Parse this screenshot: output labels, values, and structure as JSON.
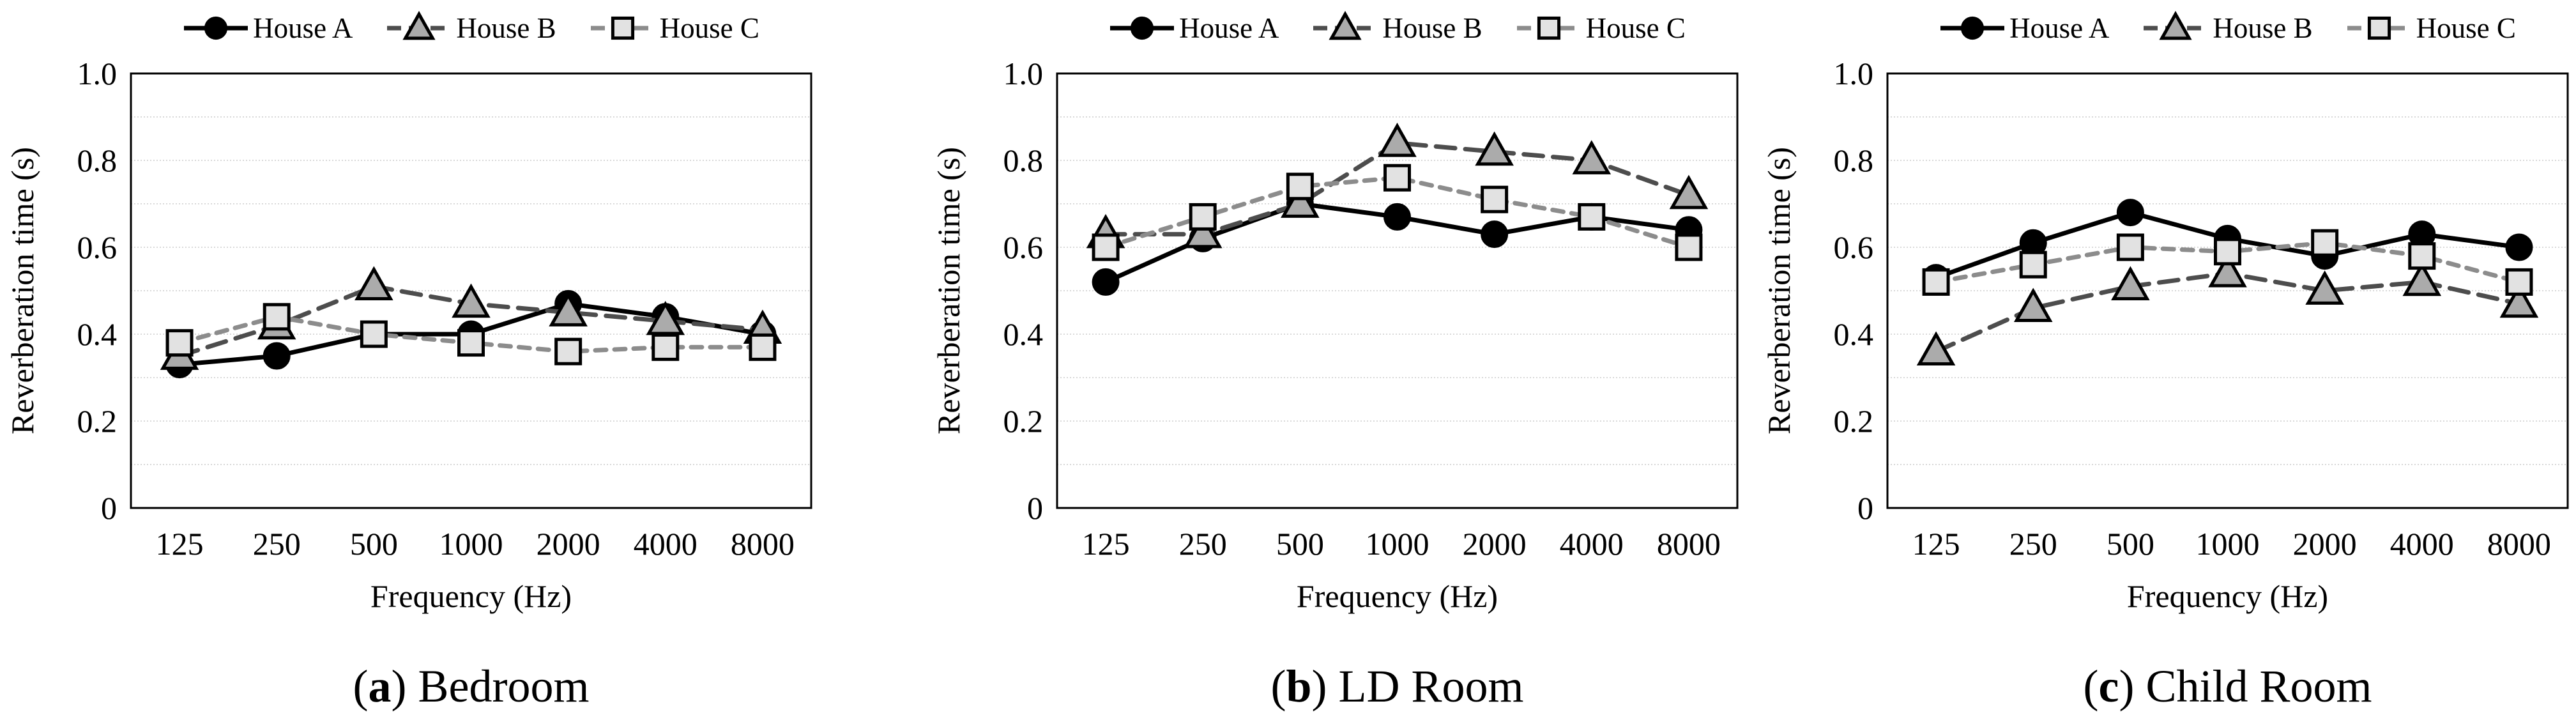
{
  "ui": {
    "legend": {
      "items": [
        {
          "label": "House A"
        },
        {
          "label": "House B"
        },
        {
          "label": "House C"
        }
      ]
    },
    "y_axis_label": "Reverberation time  (s)",
    "x_axis_label": "Frequency  (Hz)",
    "paren_open": "(",
    "paren_close": ")"
  },
  "styles": {
    "grid_color": "#cccccc",
    "axis_color": "#000000",
    "series": {
      "House A": {
        "line_color": "#000000",
        "line_dash": "",
        "marker": "circle",
        "marker_fill": "#000000",
        "marker_stroke": "#000000"
      },
      "House B": {
        "line_color": "#4d4d4d",
        "line_dash": "30 16",
        "marker": "triangle",
        "marker_fill": "#ababab",
        "marker_stroke": "#000000"
      },
      "House C": {
        "line_color": "#8c8c8c",
        "line_dash": "17 13",
        "marker": "square",
        "marker_fill": "#e2e2e2",
        "marker_stroke": "#000000"
      }
    }
  },
  "chart_data": [
    {
      "type": "line",
      "title": "(a) Bedroom",
      "caption_letter": "a",
      "caption_label": "Bedroom",
      "xlabel": "Frequency  (Hz)",
      "ylabel": "Reverberation time  (s)",
      "categories": [
        "125",
        "250",
        "500",
        "1000",
        "2000",
        "4000",
        "8000"
      ],
      "ylim": [
        0,
        1.0
      ],
      "grid_step": 0.1,
      "grid_on": true,
      "legend_position": "top-center",
      "yticks": [
        {
          "v": 1.0,
          "label": "1.0"
        },
        {
          "v": 0.8,
          "label": "0.8"
        },
        {
          "v": 0.6,
          "label": "0.6"
        },
        {
          "v": 0.4,
          "label": "0.4"
        },
        {
          "v": 0.2,
          "label": "0.2"
        },
        {
          "v": 0.0,
          "label": "0"
        }
      ],
      "series": [
        {
          "name": "House A",
          "values": [
            0.33,
            0.35,
            0.4,
            0.4,
            0.47,
            0.44,
            0.4
          ]
        },
        {
          "name": "House B",
          "values": [
            0.35,
            0.42,
            0.51,
            0.47,
            0.45,
            0.43,
            0.41
          ]
        },
        {
          "name": "House C",
          "values": [
            0.38,
            0.44,
            0.4,
            0.38,
            0.36,
            0.37,
            0.37
          ]
        }
      ]
    },
    {
      "type": "line",
      "title": "(b) LD Room",
      "caption_letter": "b",
      "caption_label": "LD Room",
      "xlabel": "Frequency  (Hz)",
      "ylabel": "Reverberation time  (s)",
      "categories": [
        "125",
        "250",
        "500",
        "1000",
        "2000",
        "4000",
        "8000"
      ],
      "ylim": [
        0,
        1.0
      ],
      "grid_step": 0.1,
      "grid_on": true,
      "legend_position": "top-center",
      "yticks": [
        {
          "v": 1.0,
          "label": "1.0"
        },
        {
          "v": 0.8,
          "label": "0.8"
        },
        {
          "v": 0.6,
          "label": "0.6"
        },
        {
          "v": 0.4,
          "label": "0.4"
        },
        {
          "v": 0.2,
          "label": "0.2"
        },
        {
          "v": 0.0,
          "label": "0"
        }
      ],
      "series": [
        {
          "name": "House A",
          "values": [
            0.52,
            0.62,
            0.7,
            0.67,
            0.63,
            0.67,
            0.64
          ]
        },
        {
          "name": "House B",
          "values": [
            0.63,
            0.63,
            0.7,
            0.84,
            0.82,
            0.8,
            0.72
          ]
        },
        {
          "name": "House C",
          "values": [
            0.6,
            0.67,
            0.74,
            0.76,
            0.71,
            0.67,
            0.6
          ]
        }
      ]
    },
    {
      "type": "line",
      "title": "(c) Child Room",
      "caption_letter": "c",
      "caption_label": "Child Room",
      "xlabel": "Frequency  (Hz)",
      "ylabel": "Reverberation time  (s)",
      "categories": [
        "125",
        "250",
        "500",
        "1000",
        "2000",
        "4000",
        "8000"
      ],
      "ylim": [
        0,
        1.0
      ],
      "grid_step": 0.1,
      "grid_on": true,
      "legend_position": "top-center",
      "yticks": [
        {
          "v": 1.0,
          "label": "1.0"
        },
        {
          "v": 0.8,
          "label": "0.8"
        },
        {
          "v": 0.6,
          "label": "0.6"
        },
        {
          "v": 0.4,
          "label": "0.4"
        },
        {
          "v": 0.2,
          "label": "0.2"
        },
        {
          "v": 0.0,
          "label": "0"
        }
      ],
      "series": [
        {
          "name": "House A",
          "values": [
            0.53,
            0.61,
            0.68,
            0.62,
            0.58,
            0.63,
            0.6
          ]
        },
        {
          "name": "House B",
          "values": [
            0.36,
            0.46,
            0.51,
            0.54,
            0.5,
            0.52,
            0.47
          ]
        },
        {
          "name": "House C",
          "values": [
            0.52,
            0.56,
            0.6,
            0.59,
            0.61,
            0.58,
            0.52
          ]
        }
      ]
    }
  ]
}
